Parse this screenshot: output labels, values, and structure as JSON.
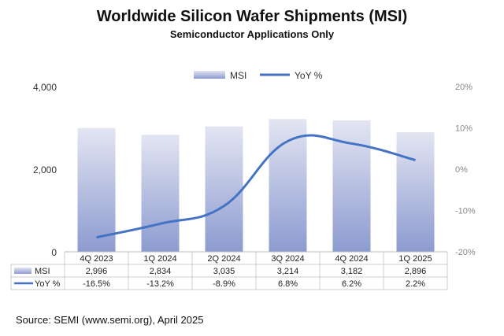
{
  "chart_data": {
    "type": "bar+line",
    "title": "Worldwide Silicon Wafer Shipments (MSI)",
    "subtitle": "Semiconductor Applications Only",
    "categories": [
      "4Q 2023",
      "1Q 2024",
      "2Q 2024",
      "3Q 2024",
      "4Q 2024",
      "1Q 2025"
    ],
    "series": [
      {
        "name": "MSI",
        "type": "bar",
        "axis": "left",
        "values": [
          2996,
          2834,
          3035,
          3214,
          3182,
          2896
        ],
        "labels": [
          "2,996",
          "2,834",
          "3,035",
          "3,214",
          "3,182",
          "2,896"
        ],
        "color": "#9aa6d6"
      },
      {
        "name": "YoY %",
        "type": "line",
        "axis": "right",
        "values": [
          -16.5,
          -13.2,
          -8.9,
          6.8,
          6.2,
          2.2
        ],
        "labels": [
          "-16.5%",
          "-13.2%",
          "-8.9%",
          "6.8%",
          "6.2%",
          "2.2%"
        ],
        "color": "#4472c4"
      }
    ],
    "ylim": [
      0,
      4000
    ],
    "yticks": [
      "0",
      "2,000",
      "4,000"
    ],
    "ytick_values": [
      0,
      2000,
      4000
    ],
    "y2lim": [
      -20,
      20
    ],
    "y2ticks": [
      "-20%",
      "-10%",
      "0%",
      "10%",
      "20%"
    ],
    "y2tick_values": [
      -20,
      -10,
      0,
      10,
      20
    ],
    "legend": "top",
    "grid": false,
    "data_table": true
  },
  "source": "Source: SEMI (www.semi.org), April 2025"
}
